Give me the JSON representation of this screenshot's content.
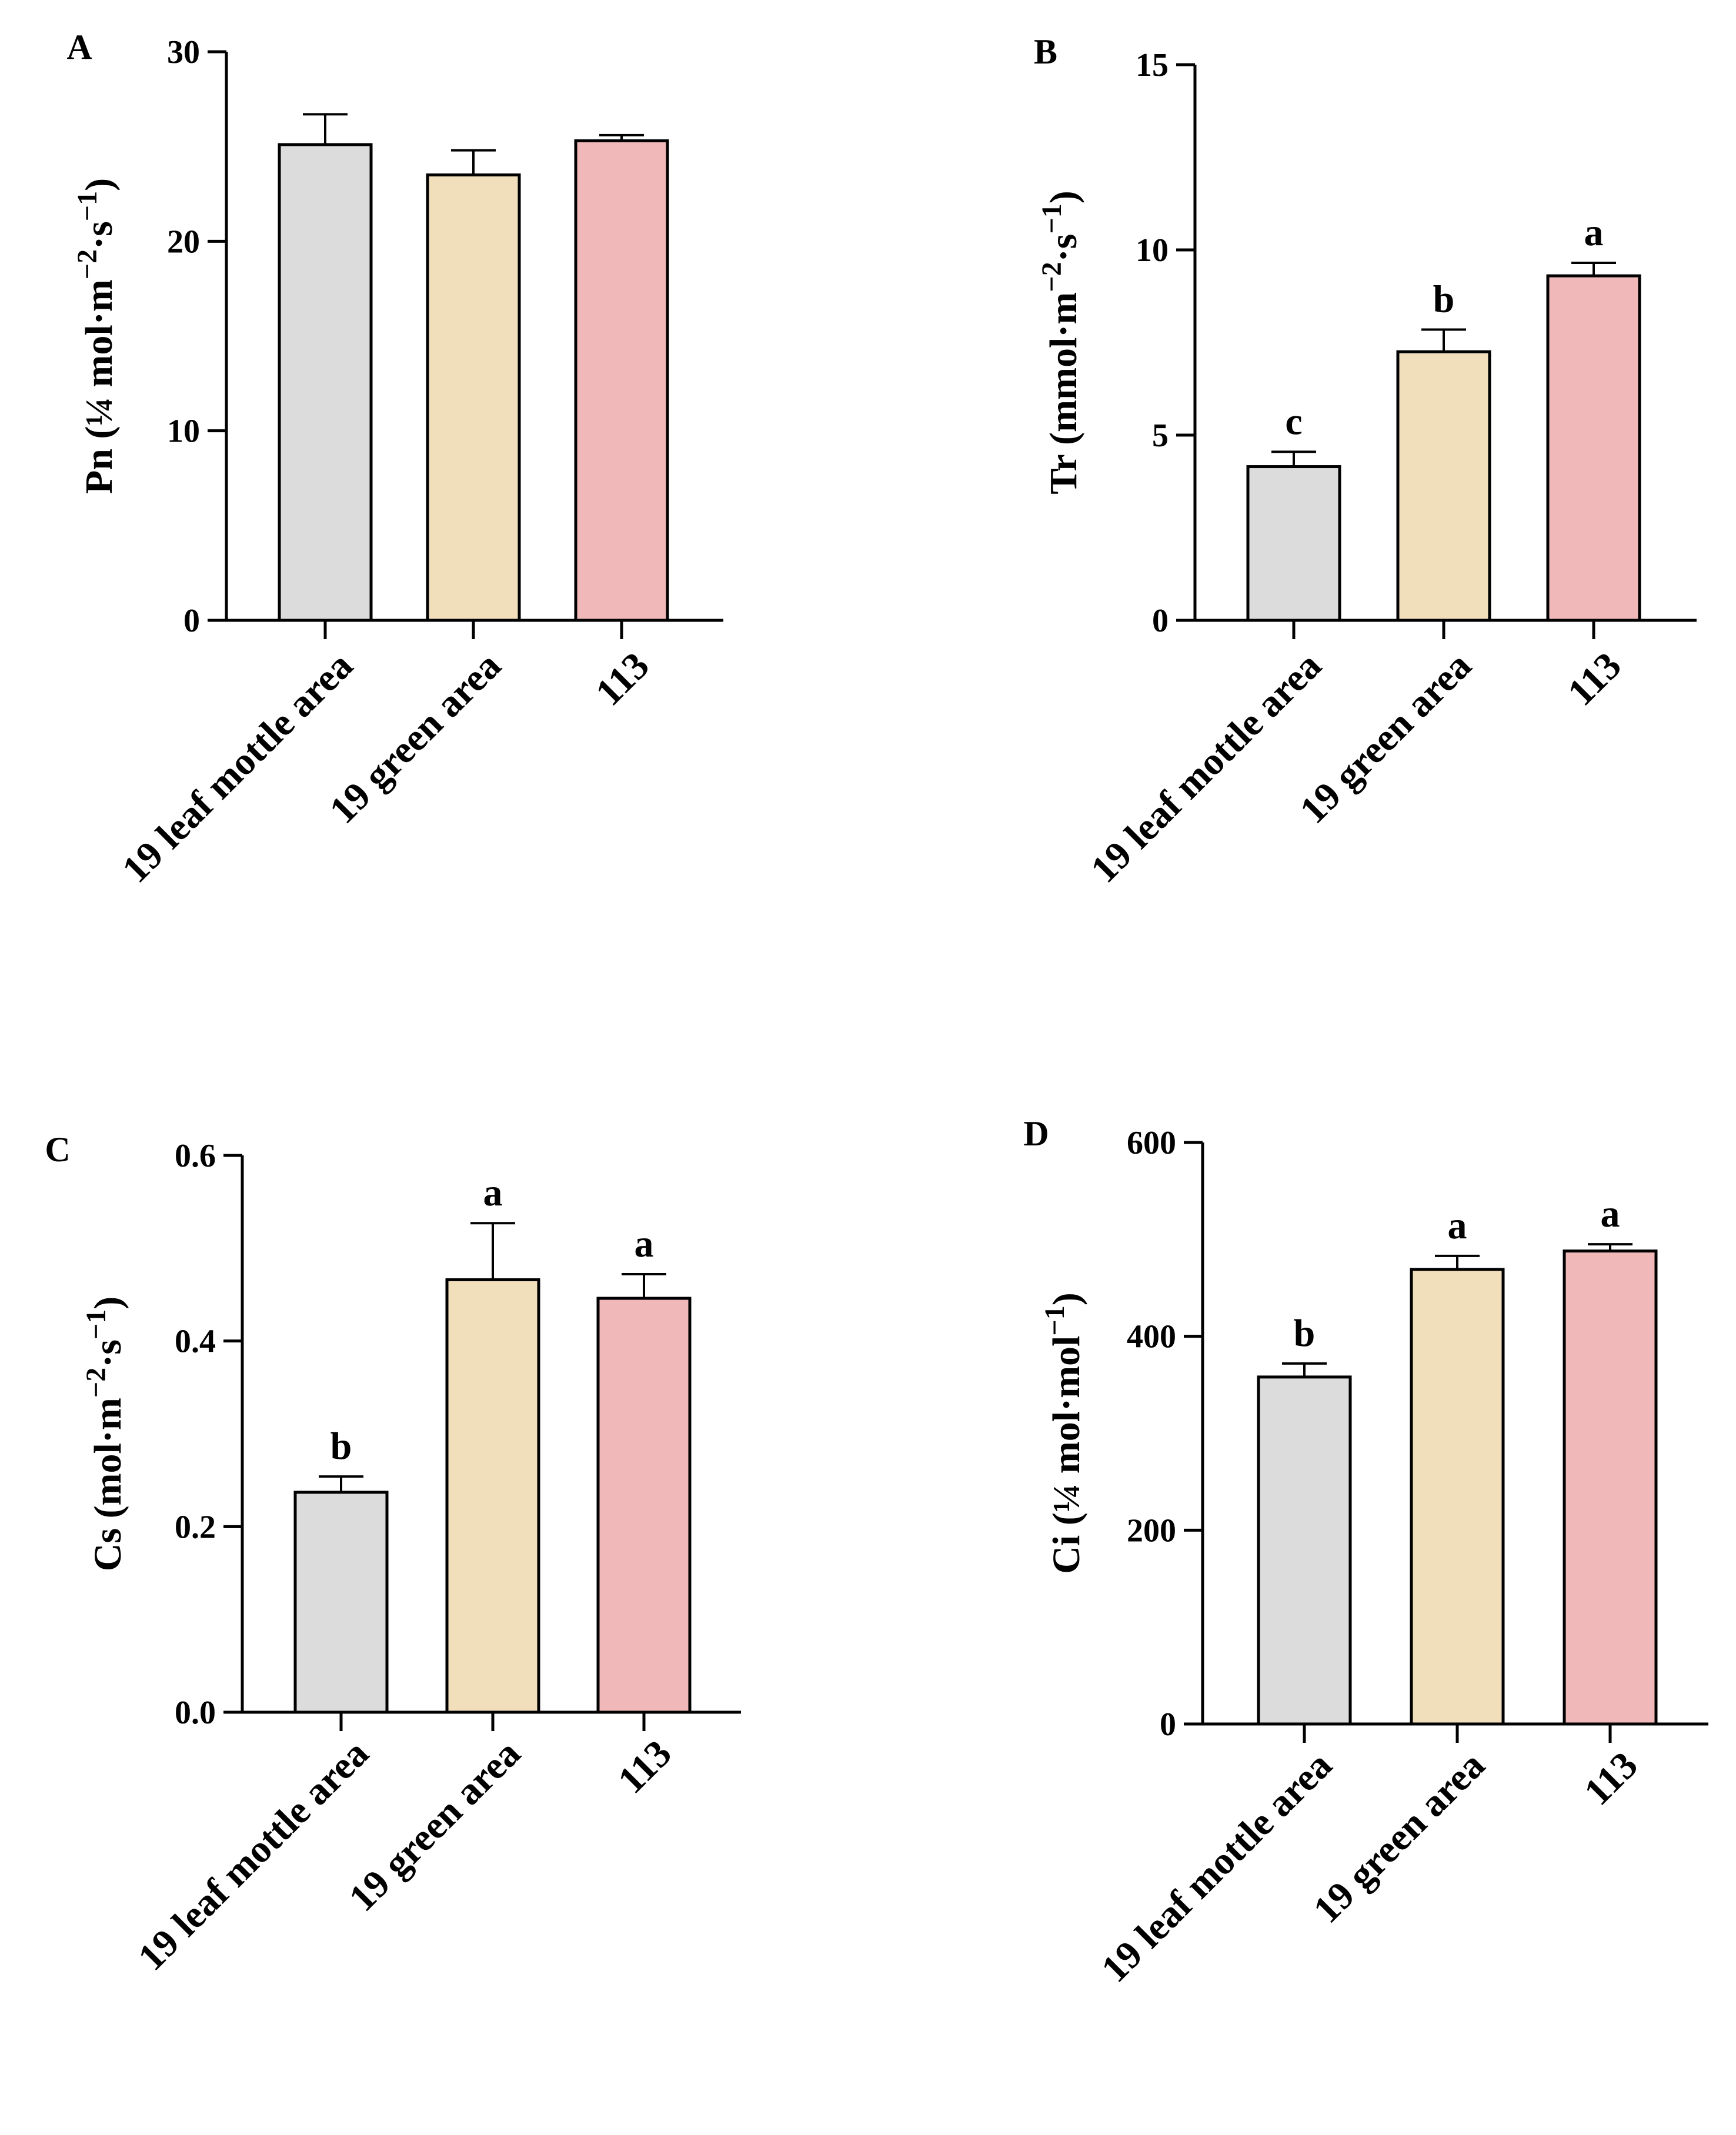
{
  "figure": {
    "colors": {
      "19 leaf mottle area": "#DCDCDC",
      "19 green area": "#F1DEBB",
      "113": "#F0B8B8",
      "stroke": "#000000"
    }
  },
  "chart_data": [
    {
      "type": "bar",
      "panel": "A",
      "ylabel": "Pn (¼ mol·m⁻²·s⁻¹)",
      "categories": [
        "19 leaf mottle area",
        "19 green area",
        "113"
      ],
      "values": [
        25.1,
        23.5,
        25.3
      ],
      "errors": [
        1.6,
        1.3,
        0.3
      ],
      "significance": [
        "",
        "",
        ""
      ],
      "ylim": [
        0,
        30
      ],
      "yticks": [
        0,
        10,
        20,
        30
      ],
      "ytick_labels": [
        "0",
        "10",
        "20",
        "30"
      ]
    },
    {
      "type": "bar",
      "panel": "B",
      "ylabel": "Tr (mmol·m⁻²·s⁻¹)",
      "categories": [
        "19 leaf mottle area",
        "19 green area",
        "113"
      ],
      "values": [
        4.15,
        7.25,
        9.3
      ],
      "errors": [
        0.4,
        0.6,
        0.35
      ],
      "significance": [
        "c",
        "b",
        "a"
      ],
      "ylim": [
        0,
        15
      ],
      "yticks": [
        0,
        5,
        10,
        15
      ],
      "ytick_labels": [
        "0",
        "5",
        "10",
        "15"
      ]
    },
    {
      "type": "bar",
      "panel": "C",
      "ylabel": "Cs (mol·m⁻²·s⁻¹)",
      "categories": [
        "19 leaf mottle area",
        "19 green area",
        "113"
      ],
      "values": [
        0.237,
        0.466,
        0.446
      ],
      "errors": [
        0.017,
        0.061,
        0.026
      ],
      "significance": [
        "b",
        "a",
        "a"
      ],
      "ylim": [
        0,
        0.6
      ],
      "yticks": [
        0,
        0.2,
        0.4,
        0.6
      ],
      "ytick_labels": [
        "0.0",
        "0.2",
        "0.4",
        "0.6"
      ]
    },
    {
      "type": "bar",
      "panel": "D",
      "ylabel": "Ci (¼ mol·mol⁻¹)",
      "categories": [
        "19 leaf mottle area",
        "19 green area",
        "113"
      ],
      "values": [
        358,
        469,
        488
      ],
      "errors": [
        14,
        14,
        7
      ],
      "significance": [
        "b",
        "a",
        "a"
      ],
      "ylim": [
        0,
        600
      ],
      "yticks": [
        0,
        200,
        400,
        600
      ],
      "ytick_labels": [
        "0",
        "200",
        "400",
        "600"
      ]
    }
  ]
}
